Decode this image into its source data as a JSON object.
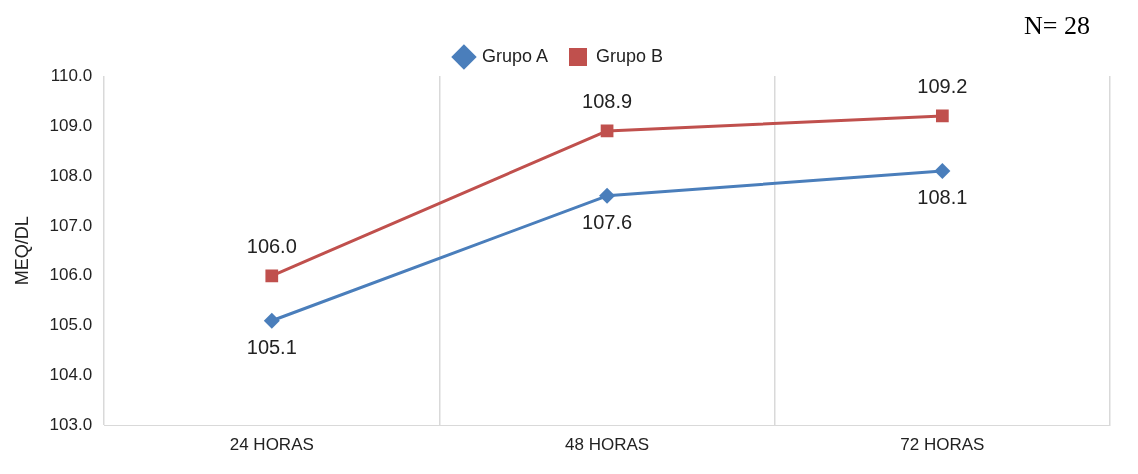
{
  "chart_data": {
    "type": "line",
    "ylabel": "MEQ/DL",
    "annotations": [
      "N= 28"
    ],
    "categories": [
      "24 HORAS",
      "48 HORAS",
      "72 HORAS"
    ],
    "series": [
      {
        "name": "Grupo A",
        "color": "#4a7ebb",
        "values": [
          105.1,
          107.6,
          108.1
        ],
        "value_labels": [
          "105.1",
          "107.6",
          "108.1"
        ],
        "marker": "diamond"
      },
      {
        "name": "Grupo B",
        "color": "#c0504d",
        "values": [
          106.0,
          108.9,
          109.2
        ],
        "value_labels": [
          "106.0",
          "108.9",
          "109.2"
        ],
        "marker": "square"
      }
    ],
    "ylim": [
      103,
      110
    ],
    "yticks": [
      {
        "value": 103,
        "label": "103.0"
      },
      {
        "value": 104,
        "label": "104.0"
      },
      {
        "value": 105,
        "label": "105.0"
      },
      {
        "value": 106,
        "label": "106.0"
      },
      {
        "value": 107,
        "label": "107.0"
      },
      {
        "value": 108,
        "label": "108.0"
      },
      {
        "value": 109,
        "label": "109.0"
      },
      {
        "value": 110,
        "label": "110.0"
      }
    ],
    "grid": "x",
    "legend": "top"
  }
}
